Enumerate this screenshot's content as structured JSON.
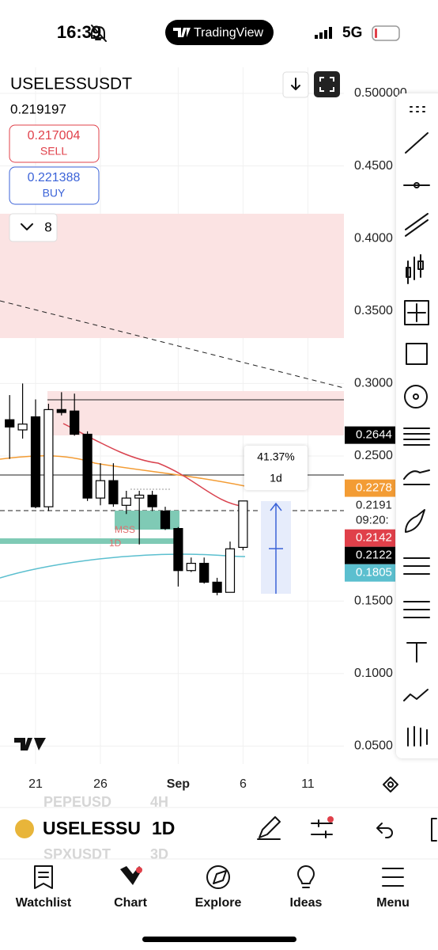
{
  "status_bar": {
    "time": "16:39",
    "app": "TradingView",
    "network": "5G"
  },
  "header": {
    "symbol": "USELESSUSDT",
    "last_price": "0.219197",
    "sell_price": "0.217004",
    "sell_label": "SELL",
    "buy_price": "0.221388",
    "buy_label": "BUY",
    "indicator_count": "8"
  },
  "chart_data": {
    "type": "candlestick",
    "categories": [
      null,
      null,
      "21",
      null,
      null,
      null,
      null,
      "26",
      null,
      null,
      null,
      null,
      null,
      "Sep",
      null,
      null,
      null,
      null,
      "6",
      null,
      null,
      null,
      null,
      "11",
      null
    ],
    "open": [
      0.275,
      0.268,
      0.277,
      0.215,
      0.282,
      0.281,
      0.265,
      0.221,
      0.233,
      0.216,
      0.221,
      0.223,
      0.212,
      0.2,
      0.171,
      0.176,
      0.163,
      0.156,
      0.187,
      null,
      null,
      null,
      null,
      null,
      null
    ],
    "high": [
      0.292,
      0.3,
      0.289,
      0.286,
      0.294,
      0.293,
      0.267,
      0.245,
      0.245,
      0.226,
      0.226,
      0.226,
      0.215,
      0.201,
      0.18,
      0.18,
      0.166,
      0.191,
      0.219,
      null,
      null,
      null,
      null,
      null,
      null
    ],
    "low": [
      0.248,
      0.262,
      0.214,
      0.212,
      0.278,
      0.264,
      0.219,
      0.216,
      0.215,
      0.21,
      0.189,
      0.212,
      0.199,
      0.16,
      0.17,
      0.162,
      0.154,
      0.156,
      0.185,
      null,
      null,
      null,
      null,
      null,
      null
    ],
    "close": [
      0.27,
      0.272,
      0.215,
      0.282,
      0.28,
      0.265,
      0.221,
      0.233,
      0.217,
      0.221,
      0.223,
      0.215,
      0.2,
      0.171,
      0.176,
      0.163,
      0.156,
      0.186,
      0.219,
      null,
      null,
      null,
      null,
      null,
      null
    ],
    "up_color": "#ffffff",
    "down_color": "#000000",
    "ylim": [
      0.0289,
      0.5
    ],
    "yticks": [
      {
        "value": 0.5,
        "label": "0.500000"
      },
      {
        "value": 0.45,
        "label": "0.4500"
      },
      {
        "value": 0.4,
        "label": "0.4000"
      },
      {
        "value": 0.35,
        "label": "0.3500"
      },
      {
        "value": 0.3,
        "label": "0.3000"
      },
      {
        "value": 0.25,
        "label": "0.2500"
      },
      {
        "value": 0.15,
        "label": "0.1500"
      },
      {
        "value": 0.1,
        "label": "0.1000"
      },
      {
        "value": 0.05,
        "label": "0.0500"
      }
    ],
    "grid": true,
    "price_labels": [
      {
        "value": 0.2644,
        "label": "0.2644",
        "color": "#000000"
      },
      {
        "value": 0.2278,
        "label": "0.2278",
        "color": "#f39c34"
      },
      {
        "value": 0.2191,
        "label": "0.2191",
        "color": "#ffffff"
      },
      {
        "value": 0.2142,
        "label": "0.2142",
        "color": "#e0404a"
      },
      {
        "value": 0.2122,
        "label": "0.2122",
        "color": "#000000"
      },
      {
        "value": 0.1805,
        "label": "0.1805",
        "color": "#5bbfcf"
      }
    ],
    "countdown": "09:20:",
    "annotations": {
      "measure_percent": "41.37%",
      "measure_duration": "1d",
      "mss_label": "MSS",
      "mss_timeframe": "1D"
    }
  },
  "symbol_bar": {
    "symbol": "USELESSU",
    "interval": "1D",
    "prev_symbol": "PEPEUSD",
    "prev_interval": "4H",
    "next_symbol": "SPXUSDT",
    "next_interval": "3D"
  },
  "bottom_nav": {
    "items": [
      "Watchlist",
      "Chart",
      "Explore",
      "Ideas",
      "Menu"
    ]
  }
}
